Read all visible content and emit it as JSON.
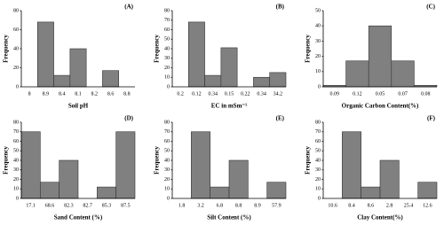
{
  "chart_data": [
    {
      "type": "bar",
      "panel": "(A)",
      "xlabel": "Soil pH",
      "ylabel": "Frequency",
      "categories": [
        "8",
        "8.9",
        "8.4",
        "8.1",
        "8.2",
        "8.6",
        "8.8"
      ],
      "values": [
        0,
        68,
        12,
        40,
        0,
        17,
        0
      ],
      "ylim": [
        0,
        80
      ],
      "yticks": [
        0,
        20,
        40,
        60,
        80
      ],
      "color": "#808080"
    },
    {
      "type": "bar",
      "panel": "(B)",
      "xlabel": "EC in mSm⁻¹",
      "ylabel": "Frequency",
      "categories": [
        "0.2",
        "0.12",
        "0.34",
        "0.15",
        "0.22",
        "0.34",
        "34.2"
      ],
      "values": [
        0,
        68,
        12,
        41,
        0,
        10,
        15
      ],
      "ylim": [
        0,
        80
      ],
      "yticks": [
        0,
        10,
        20,
        30,
        40,
        50,
        60,
        70,
        80
      ],
      "color": "#808080"
    },
    {
      "type": "bar",
      "panel": "(C)",
      "xlabel": "Organic Carbon Content(%)",
      "ylabel": "Frequency",
      "categories": [
        "0.09",
        "0.12",
        "0.05",
        "0.07",
        "0.08"
      ],
      "values": [
        1,
        17,
        40,
        17,
        1
      ],
      "ylim": [
        0,
        50
      ],
      "yticks": [
        0,
        10,
        20,
        30,
        40,
        50
      ],
      "color": "#808080"
    },
    {
      "type": "bar",
      "panel": "(D)",
      "xlabel": "Sand Content (%)",
      "ylabel": "Frequency",
      "categories": [
        "17.1",
        "68.6",
        "82.3",
        "82.7",
        "85.3",
        "87.5"
      ],
      "values": [
        70,
        17,
        40,
        0,
        12,
        70
      ],
      "ylim": [
        0,
        80
      ],
      "yticks": [
        0,
        10,
        20,
        30,
        40,
        50,
        60,
        70,
        80
      ],
      "color": "#808080"
    },
    {
      "type": "bar",
      "panel": "(E)",
      "xlabel": "Silt Content (%)",
      "ylabel": "Frequency",
      "categories": [
        "1.8",
        "3.2",
        "6.8",
        "8.8",
        "8.9",
        "57.9"
      ],
      "values": [
        0,
        70,
        12,
        40,
        0,
        17
      ],
      "ylim": [
        0,
        80
      ],
      "yticks": [
        0,
        10,
        20,
        30,
        40,
        50,
        60,
        70,
        80
      ],
      "color": "#808080"
    },
    {
      "type": "bar",
      "panel": "(F)",
      "xlabel": "Clay Content(%)",
      "ylabel": "Frequency",
      "categories": [
        "10.6",
        "8.4",
        "8.6",
        "2.8",
        "25.4",
        "12.6"
      ],
      "values": [
        0,
        70,
        12,
        40,
        0,
        17
      ],
      "ylim": [
        0,
        80
      ],
      "yticks": [
        0,
        10,
        20,
        30,
        40,
        50,
        60,
        70,
        80
      ],
      "color": "#808080"
    }
  ]
}
